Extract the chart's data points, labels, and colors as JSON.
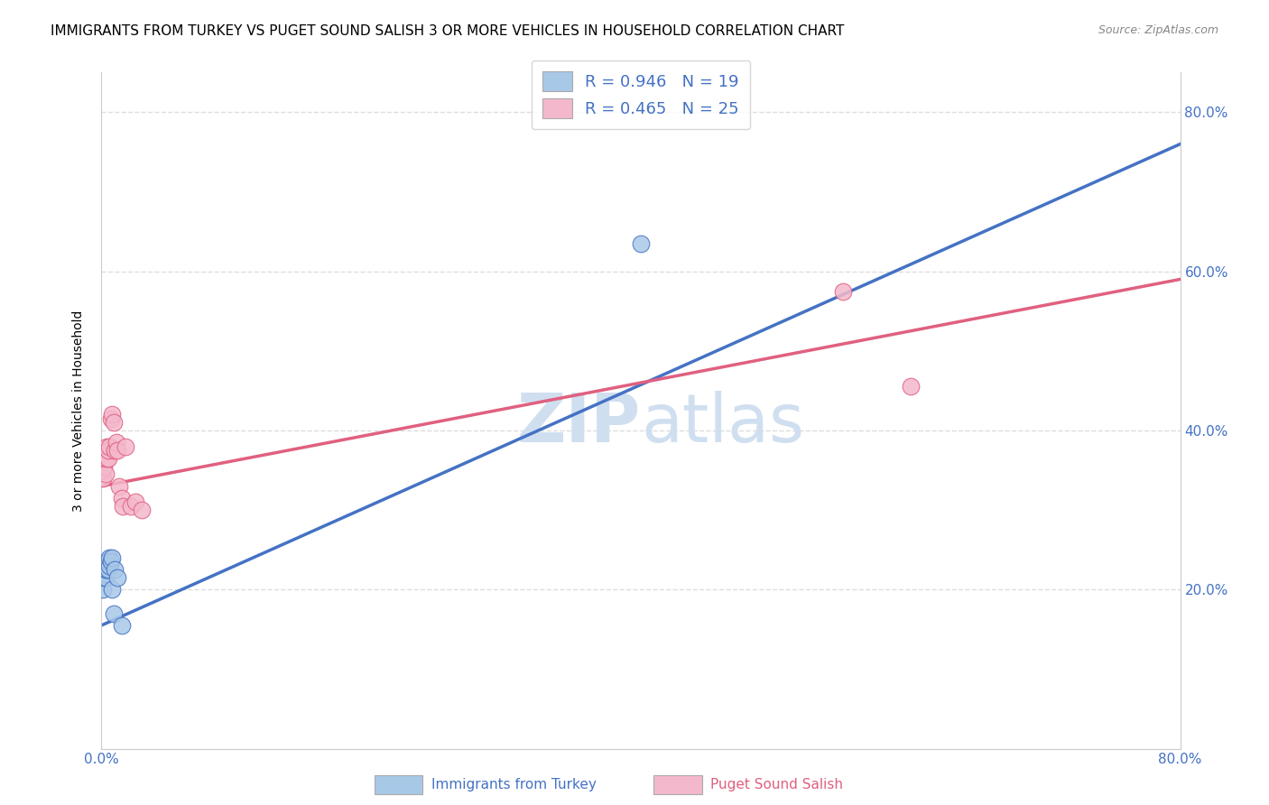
{
  "title": "IMMIGRANTS FROM TURKEY VS PUGET SOUND SALISH 3 OR MORE VEHICLES IN HOUSEHOLD CORRELATION CHART",
  "source": "Source: ZipAtlas.com",
  "ylabel": "3 or more Vehicles in Household",
  "xlabel_blue": "Immigrants from Turkey",
  "xlabel_pink": "Puget Sound Salish",
  "blue_R": "0.946",
  "blue_N": "19",
  "pink_R": "0.465",
  "pink_N": "25",
  "blue_color": "#a8c8e8",
  "blue_line_color": "#4472c4",
  "pink_color": "#f4b8cc",
  "pink_line_color": "#e06080",
  "watermark_color": "#d0dff0",
  "blue_scatter_x": [
    0.001,
    0.002,
    0.002,
    0.003,
    0.003,
    0.004,
    0.004,
    0.005,
    0.005,
    0.006,
    0.006,
    0.007,
    0.008,
    0.008,
    0.009,
    0.01,
    0.012,
    0.4,
    0.015
  ],
  "blue_scatter_y": [
    0.2,
    0.215,
    0.22,
    0.215,
    0.225,
    0.225,
    0.235,
    0.225,
    0.235,
    0.23,
    0.24,
    0.235,
    0.24,
    0.2,
    0.17,
    0.225,
    0.215,
    0.635,
    0.155
  ],
  "pink_scatter_x": [
    0.001,
    0.001,
    0.002,
    0.002,
    0.003,
    0.004,
    0.004,
    0.005,
    0.005,
    0.006,
    0.007,
    0.008,
    0.009,
    0.01,
    0.011,
    0.012,
    0.013,
    0.015,
    0.016,
    0.018,
    0.022,
    0.025,
    0.03,
    0.55,
    0.6
  ],
  "pink_scatter_y": [
    0.34,
    0.35,
    0.355,
    0.365,
    0.345,
    0.365,
    0.38,
    0.365,
    0.375,
    0.38,
    0.415,
    0.42,
    0.41,
    0.375,
    0.385,
    0.375,
    0.33,
    0.315,
    0.305,
    0.38,
    0.305,
    0.31,
    0.3,
    0.575,
    0.455
  ],
  "blue_line_x0": 0.0,
  "blue_line_y0": 0.155,
  "blue_line_x1": 0.8,
  "blue_line_y1": 0.76,
  "pink_line_x0": 0.0,
  "pink_line_y0": 0.33,
  "pink_line_x1": 0.8,
  "pink_line_y1": 0.59,
  "xlim": [
    0.0,
    0.8
  ],
  "ylim": [
    0.0,
    0.85
  ],
  "grid_color": "#dddddd",
  "title_fontsize": 11,
  "axis_label_fontsize": 10,
  "tick_fontsize": 11,
  "legend_fontsize": 13
}
